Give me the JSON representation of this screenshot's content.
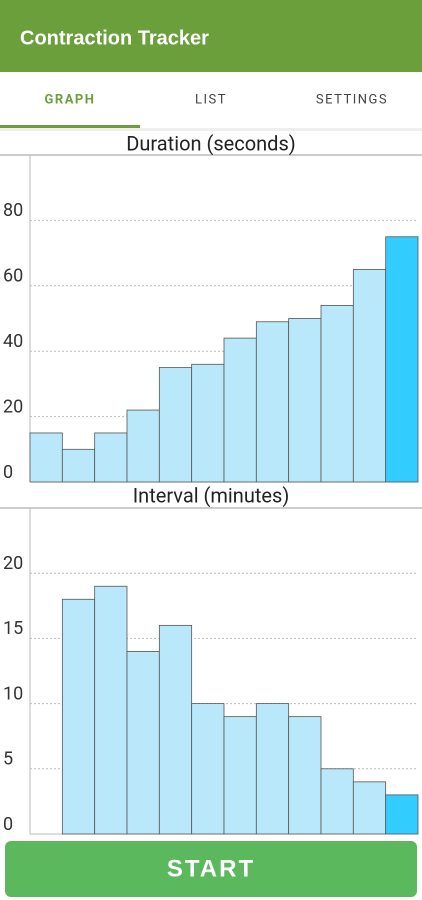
{
  "app_bar": {
    "title": "Contraction Tracker"
  },
  "tabs": [
    "GRAPH",
    "LIST",
    "SETTINGS"
  ],
  "charts": [
    {
      "type": "bar",
      "title": "Duration (seconds)",
      "values": [
        15,
        10,
        15,
        22,
        35,
        36,
        44,
        49,
        50,
        54,
        65,
        75
      ],
      "colors": [
        "#b9e8fa",
        "#b9e8fa",
        "#b9e8fa",
        "#b9e8fa",
        "#b9e8fa",
        "#b9e8fa",
        "#b9e8fa",
        "#b9e8fa",
        "#b9e8fa",
        "#b9e8fa",
        "#b9e8fa",
        "#33ccff"
      ],
      "ylim": [
        0,
        100
      ],
      "yticks": [
        0,
        20,
        40,
        60,
        80
      ],
      "grid": true
    },
    {
      "type": "bar",
      "title": "Interval (minutes)",
      "values": [
        0,
        18,
        19,
        14,
        16,
        10,
        9,
        10,
        9,
        5,
        4,
        3
      ],
      "colors": [
        "#b9e8fa",
        "#b9e8fa",
        "#b9e8fa",
        "#b9e8fa",
        "#b9e8fa",
        "#b9e8fa",
        "#b9e8fa",
        "#b9e8fa",
        "#b9e8fa",
        "#b9e8fa",
        "#b9e8fa",
        "#33ccff"
      ],
      "ylim": [
        0,
        25
      ],
      "yticks": [
        0,
        5,
        10,
        15,
        20
      ],
      "grid": true
    }
  ],
  "button": {
    "label": "START"
  }
}
